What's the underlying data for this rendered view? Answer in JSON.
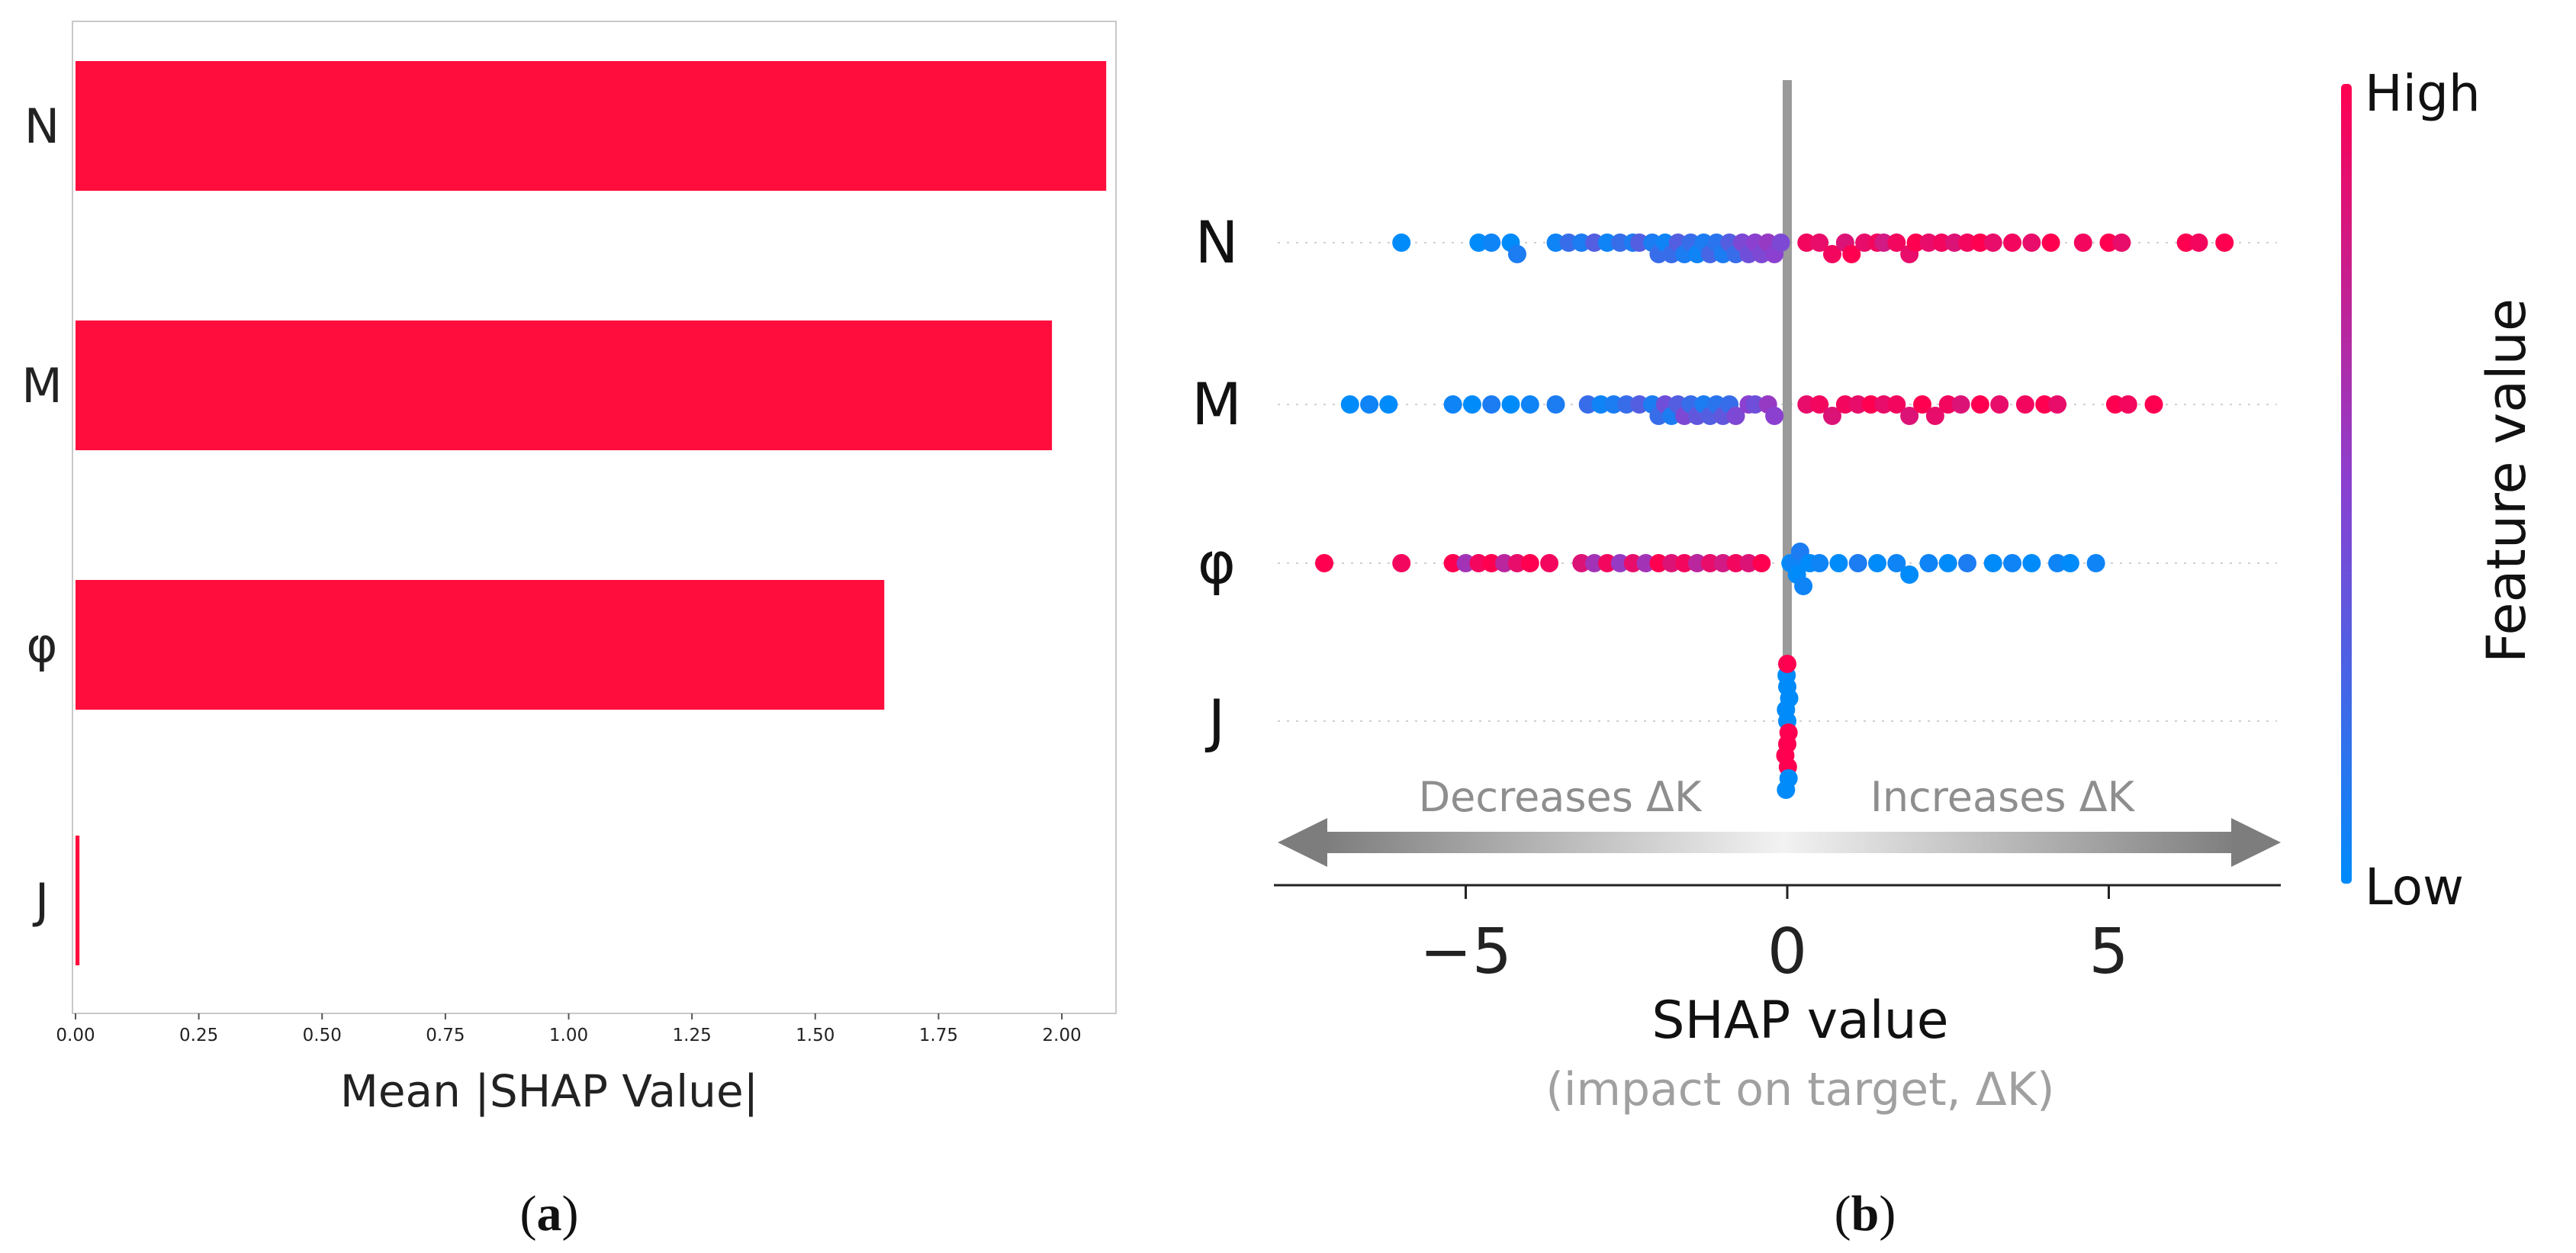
{
  "panel_a": {
    "caption_open": "(",
    "caption_letter": "a",
    "caption_close": ")"
  },
  "panel_b": {
    "caption_open": "(",
    "caption_letter": "b",
    "caption_close": ")",
    "arrow_left_label": "Decreases ΔK",
    "arrow_right_label": "Increases ΔK",
    "colorbar": {
      "high_label": "High",
      "low_label": "Low",
      "title": "Feature value",
      "high_color": "#ff0051",
      "mid_color": "#8b40d0",
      "low_color": "#008bfb"
    }
  },
  "chart_data": [
    {
      "type": "bar",
      "orientation": "horizontal",
      "categories": [
        "N",
        "M",
        "φ",
        "J"
      ],
      "values": [
        2.09,
        1.98,
        1.64,
        0.008
      ],
      "xlabel": "Mean |SHAP Value|",
      "ylabel": "",
      "xlim": [
        0,
        2.2
      ],
      "xticks": [
        "0.00",
        "0.25",
        "0.50",
        "0.75",
        "1.00",
        "1.25",
        "1.50",
        "1.75",
        "2.00"
      ],
      "bar_color": "#ff0d3d",
      "grid": false
    },
    {
      "type": "scatter",
      "subtype": "shap-beeswarm",
      "features": [
        "N",
        "M",
        "φ",
        "J"
      ],
      "xlabel": "SHAP value",
      "xlabel_sub": "(impact on target, ΔK)",
      "xlim": [
        -7.6,
        7.6
      ],
      "xticks": [
        "−5",
        "0",
        "5"
      ],
      "xtick_values": [
        -5,
        0,
        5
      ],
      "zero_line": 0,
      "series": [
        {
          "feature": "N",
          "points": [
            {
              "x": -6.0,
              "f": 0.0
            },
            {
              "x": -4.8,
              "f": 0.0
            },
            {
              "x": -4.6,
              "f": 0.05
            },
            {
              "x": -4.3,
              "f": 0.0
            },
            {
              "x": -4.2,
              "f": 0.1
            },
            {
              "x": -3.6,
              "f": 0.05
            },
            {
              "x": -3.4,
              "f": 0.2
            },
            {
              "x": -3.2,
              "f": 0.1
            },
            {
              "x": -3.0,
              "f": 0.3
            },
            {
              "x": -2.8,
              "f": 0.05
            },
            {
              "x": -2.6,
              "f": 0.2
            },
            {
              "x": -2.4,
              "f": 0.1
            },
            {
              "x": -2.3,
              "f": 0.3
            },
            {
              "x": -2.1,
              "f": 0.1
            },
            {
              "x": -2.0,
              "f": 0.2
            },
            {
              "x": -1.9,
              "f": 0.05
            },
            {
              "x": -1.8,
              "f": 0.2
            },
            {
              "x": -1.7,
              "f": 0.3
            },
            {
              "x": -1.6,
              "f": 0.1
            },
            {
              "x": -1.5,
              "f": 0.2
            },
            {
              "x": -1.4,
              "f": 0.05
            },
            {
              "x": -1.3,
              "f": 0.1
            },
            {
              "x": -1.2,
              "f": 0.25
            },
            {
              "x": -1.1,
              "f": 0.15
            },
            {
              "x": -1.0,
              "f": 0.1
            },
            {
              "x": -0.9,
              "f": 0.3
            },
            {
              "x": -0.8,
              "f": 0.2
            },
            {
              "x": -0.7,
              "f": 0.45
            },
            {
              "x": -0.6,
              "f": 0.4
            },
            {
              "x": -0.5,
              "f": 0.5
            },
            {
              "x": -0.4,
              "f": 0.45
            },
            {
              "x": -0.3,
              "f": 0.55
            },
            {
              "x": -0.2,
              "f": 0.5
            },
            {
              "x": -0.1,
              "f": 0.45
            },
            {
              "x": 0.3,
              "f": 0.95
            },
            {
              "x": 0.5,
              "f": 0.9
            },
            {
              "x": 0.7,
              "f": 0.95
            },
            {
              "x": 0.9,
              "f": 0.85
            },
            {
              "x": 1.0,
              "f": 1.0
            },
            {
              "x": 1.2,
              "f": 0.9
            },
            {
              "x": 1.4,
              "f": 0.95
            },
            {
              "x": 1.5,
              "f": 0.8
            },
            {
              "x": 1.7,
              "f": 0.95
            },
            {
              "x": 1.9,
              "f": 0.9
            },
            {
              "x": 2.0,
              "f": 1.0
            },
            {
              "x": 2.2,
              "f": 0.9
            },
            {
              "x": 2.4,
              "f": 0.95
            },
            {
              "x": 2.6,
              "f": 0.85
            },
            {
              "x": 2.8,
              "f": 0.95
            },
            {
              "x": 3.0,
              "f": 1.0
            },
            {
              "x": 3.2,
              "f": 0.9
            },
            {
              "x": 3.5,
              "f": 0.95
            },
            {
              "x": 3.8,
              "f": 0.9
            },
            {
              "x": 4.1,
              "f": 1.0
            },
            {
              "x": 4.6,
              "f": 0.95
            },
            {
              "x": 5.0,
              "f": 1.0
            },
            {
              "x": 5.2,
              "f": 0.9
            },
            {
              "x": 6.2,
              "f": 1.0
            },
            {
              "x": 6.4,
              "f": 0.95
            },
            {
              "x": 6.8,
              "f": 1.0
            }
          ]
        },
        {
          "feature": "M",
          "points": [
            {
              "x": -6.8,
              "f": 0.0
            },
            {
              "x": -6.5,
              "f": 0.05
            },
            {
              "x": -6.2,
              "f": 0.0
            },
            {
              "x": -5.2,
              "f": 0.05
            },
            {
              "x": -4.9,
              "f": 0.0
            },
            {
              "x": -4.6,
              "f": 0.1
            },
            {
              "x": -4.3,
              "f": 0.0
            },
            {
              "x": -4.0,
              "f": 0.05
            },
            {
              "x": -3.6,
              "f": 0.1
            },
            {
              "x": -3.1,
              "f": 0.2
            },
            {
              "x": -2.9,
              "f": 0.05
            },
            {
              "x": -2.7,
              "f": 0.1
            },
            {
              "x": -2.5,
              "f": 0.2
            },
            {
              "x": -2.3,
              "f": 0.3
            },
            {
              "x": -2.1,
              "f": 0.1
            },
            {
              "x": -2.0,
              "f": 0.2
            },
            {
              "x": -1.9,
              "f": 0.4
            },
            {
              "x": -1.8,
              "f": 0.1
            },
            {
              "x": -1.7,
              "f": 0.3
            },
            {
              "x": -1.6,
              "f": 0.45
            },
            {
              "x": -1.5,
              "f": 0.2
            },
            {
              "x": -1.4,
              "f": 0.35
            },
            {
              "x": -1.3,
              "f": 0.1
            },
            {
              "x": -1.2,
              "f": 0.3
            },
            {
              "x": -1.1,
              "f": 0.15
            },
            {
              "x": -1.0,
              "f": 0.35
            },
            {
              "x": -0.9,
              "f": 0.2
            },
            {
              "x": -0.8,
              "f": 0.45
            },
            {
              "x": -0.6,
              "f": 0.5
            },
            {
              "x": -0.5,
              "f": 0.4
            },
            {
              "x": -0.3,
              "f": 0.55
            },
            {
              "x": -0.2,
              "f": 0.5
            },
            {
              "x": 0.3,
              "f": 0.9
            },
            {
              "x": 0.5,
              "f": 0.95
            },
            {
              "x": 0.7,
              "f": 0.85
            },
            {
              "x": 0.9,
              "f": 0.95
            },
            {
              "x": 1.1,
              "f": 0.9
            },
            {
              "x": 1.3,
              "f": 1.0
            },
            {
              "x": 1.5,
              "f": 0.9
            },
            {
              "x": 1.7,
              "f": 0.95
            },
            {
              "x": 1.9,
              "f": 0.85
            },
            {
              "x": 2.1,
              "f": 1.0
            },
            {
              "x": 2.3,
              "f": 0.9
            },
            {
              "x": 2.5,
              "f": 0.95
            },
            {
              "x": 2.7,
              "f": 0.85
            },
            {
              "x": 3.0,
              "f": 1.0
            },
            {
              "x": 3.3,
              "f": 0.9
            },
            {
              "x": 3.7,
              "f": 0.95
            },
            {
              "x": 4.0,
              "f": 1.0
            },
            {
              "x": 4.2,
              "f": 0.9
            },
            {
              "x": 5.1,
              "f": 1.0
            },
            {
              "x": 5.3,
              "f": 0.95
            },
            {
              "x": 5.7,
              "f": 1.0
            }
          ]
        },
        {
          "feature": "φ",
          "points": [
            {
              "x": -7.2,
              "f": 1.0
            },
            {
              "x": -6.0,
              "f": 0.95
            },
            {
              "x": -5.2,
              "f": 1.0
            },
            {
              "x": -5.0,
              "f": 0.6
            },
            {
              "x": -4.8,
              "f": 0.95
            },
            {
              "x": -4.6,
              "f": 1.0
            },
            {
              "x": -4.4,
              "f": 0.7
            },
            {
              "x": -4.2,
              "f": 0.9
            },
            {
              "x": -4.0,
              "f": 1.0
            },
            {
              "x": -3.7,
              "f": 0.95
            },
            {
              "x": -3.2,
              "f": 0.85
            },
            {
              "x": -3.0,
              "f": 0.6
            },
            {
              "x": -2.8,
              "f": 0.95
            },
            {
              "x": -2.6,
              "f": 0.55
            },
            {
              "x": -2.4,
              "f": 0.9
            },
            {
              "x": -2.2,
              "f": 0.6
            },
            {
              "x": -2.0,
              "f": 1.0
            },
            {
              "x": -1.8,
              "f": 0.85
            },
            {
              "x": -1.6,
              "f": 0.95
            },
            {
              "x": -1.4,
              "f": 0.7
            },
            {
              "x": -1.2,
              "f": 0.9
            },
            {
              "x": -1.0,
              "f": 0.8
            },
            {
              "x": -0.8,
              "f": 0.95
            },
            {
              "x": -0.6,
              "f": 0.85
            },
            {
              "x": -0.4,
              "f": 1.0
            },
            {
              "x": 0.05,
              "f": 0.0
            },
            {
              "x": 0.1,
              "f": 0.05
            },
            {
              "x": 0.15,
              "f": 0.0
            },
            {
              "x": 0.2,
              "f": 0.1
            },
            {
              "x": 0.25,
              "f": 0.05
            },
            {
              "x": 0.35,
              "f": 0.0
            },
            {
              "x": 0.5,
              "f": 0.05
            },
            {
              "x": 0.8,
              "f": 0.0
            },
            {
              "x": 1.1,
              "f": 0.1
            },
            {
              "x": 1.4,
              "f": 0.0
            },
            {
              "x": 1.7,
              "f": 0.05
            },
            {
              "x": 1.9,
              "f": 0.0
            },
            {
              "x": 2.2,
              "f": 0.05
            },
            {
              "x": 2.5,
              "f": 0.0
            },
            {
              "x": 2.8,
              "f": 0.1
            },
            {
              "x": 3.2,
              "f": 0.0
            },
            {
              "x": 3.5,
              "f": 0.05
            },
            {
              "x": 3.8,
              "f": 0.0
            },
            {
              "x": 4.2,
              "f": 0.05
            },
            {
              "x": 4.4,
              "f": 0.0
            },
            {
              "x": 4.8,
              "f": 0.05
            }
          ]
        },
        {
          "feature": "J",
          "points": [
            {
              "x": 0.0,
              "f": 0.0
            },
            {
              "x": 0.02,
              "f": 1.0
            },
            {
              "x": -0.02,
              "f": 0.0
            },
            {
              "x": 0.0,
              "f": 1.0
            },
            {
              "x": 0.03,
              "f": 0.0
            },
            {
              "x": -0.03,
              "f": 1.0
            },
            {
              "x": 0.0,
              "f": 0.0
            },
            {
              "x": 0.01,
              "f": 1.0
            },
            {
              "x": -0.01,
              "f": 0.0
            },
            {
              "x": 0.02,
              "f": 0.0
            },
            {
              "x": 0.0,
              "f": 1.0
            },
            {
              "x": -0.02,
              "f": 0.0
            }
          ]
        }
      ]
    }
  ]
}
